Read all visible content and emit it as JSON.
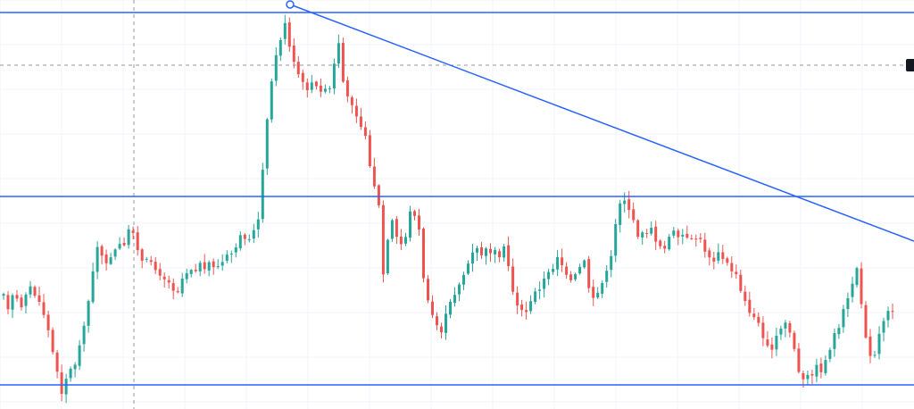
{
  "chart_data": {
    "type": "candlestick",
    "grid": true,
    "colors": {
      "up": "#26a69a",
      "down": "#ef5350",
      "drawing": "#2962ff",
      "grid": "#f0f3fa",
      "crosshair": "#9598a1",
      "badge": "#131722"
    },
    "y_range": [
      0,
      458
    ],
    "n_candles": 200,
    "path_points": [
      [
        0,
        340
      ],
      [
        8,
        320
      ],
      [
        14,
        350
      ],
      [
        20,
        330
      ],
      [
        28,
        345
      ],
      [
        36,
        320
      ],
      [
        44,
        330
      ],
      [
        50,
        345
      ],
      [
        56,
        355
      ],
      [
        62,
        385
      ],
      [
        68,
        415
      ],
      [
        73,
        440
      ],
      [
        78,
        425
      ],
      [
        84,
        415
      ],
      [
        90,
        405
      ],
      [
        95,
        385
      ],
      [
        100,
        355
      ],
      [
        106,
        330
      ],
      [
        110,
        300
      ],
      [
        114,
        275
      ],
      [
        120,
        285
      ],
      [
        128,
        295
      ],
      [
        134,
        280
      ],
      [
        140,
        275
      ],
      [
        146,
        268
      ],
      [
        152,
        255
      ],
      [
        156,
        262
      ],
      [
        160,
        280
      ],
      [
        166,
        300
      ],
      [
        172,
        290
      ],
      [
        180,
        300
      ],
      [
        188,
        310
      ],
      [
        196,
        320
      ],
      [
        204,
        325
      ],
      [
        212,
        305
      ],
      [
        220,
        300
      ],
      [
        230,
        298
      ],
      [
        240,
        295
      ],
      [
        250,
        300
      ],
      [
        258,
        290
      ],
      [
        264,
        285
      ],
      [
        272,
        270
      ],
      [
        280,
        262
      ],
      [
        288,
        264
      ],
      [
        294,
        250
      ],
      [
        296,
        215
      ],
      [
        300,
        180
      ],
      [
        305,
        130
      ],
      [
        310,
        80
      ],
      [
        316,
        60
      ],
      [
        320,
        40
      ],
      [
        324,
        22
      ],
      [
        328,
        50
      ],
      [
        334,
        70
      ],
      [
        340,
        85
      ],
      [
        346,
        100
      ],
      [
        352,
        95
      ],
      [
        358,
        100
      ],
      [
        364,
        98
      ],
      [
        370,
        105
      ],
      [
        376,
        100
      ],
      [
        380,
        70
      ],
      [
        384,
        50
      ],
      [
        388,
        80
      ],
      [
        394,
        110
      ],
      [
        400,
        115
      ],
      [
        406,
        130
      ],
      [
        412,
        145
      ],
      [
        418,
        175
      ],
      [
        422,
        195
      ],
      [
        426,
        215
      ],
      [
        430,
        235
      ],
      [
        434,
        300
      ],
      [
        436,
        335
      ],
      [
        440,
        260
      ],
      [
        446,
        245
      ],
      [
        450,
        270
      ],
      [
        456,
        275
      ],
      [
        462,
        255
      ],
      [
        466,
        230
      ],
      [
        470,
        240
      ],
      [
        474,
        255
      ],
      [
        478,
        300
      ],
      [
        484,
        340
      ],
      [
        490,
        355
      ],
      [
        496,
        368
      ],
      [
        500,
        370
      ],
      [
        508,
        345
      ],
      [
        514,
        330
      ],
      [
        520,
        315
      ],
      [
        526,
        305
      ],
      [
        532,
        290
      ],
      [
        538,
        280
      ],
      [
        546,
        285
      ],
      [
        554,
        280
      ],
      [
        562,
        285
      ],
      [
        570,
        280
      ],
      [
        574,
        295
      ],
      [
        578,
        320
      ],
      [
        584,
        340
      ],
      [
        590,
        350
      ],
      [
        598,
        345
      ],
      [
        606,
        325
      ],
      [
        614,
        315
      ],
      [
        622,
        305
      ],
      [
        630,
        285
      ],
      [
        636,
        300
      ],
      [
        642,
        320
      ],
      [
        648,
        315
      ],
      [
        654,
        300
      ],
      [
        660,
        295
      ],
      [
        666,
        330
      ],
      [
        672,
        335
      ],
      [
        678,
        320
      ],
      [
        684,
        310
      ],
      [
        688,
        295
      ],
      [
        692,
        270
      ],
      [
        696,
        240
      ],
      [
        700,
        225
      ],
      [
        704,
        222
      ],
      [
        708,
        228
      ],
      [
        714,
        250
      ],
      [
        720,
        262
      ],
      [
        726,
        265
      ],
      [
        732,
        255
      ],
      [
        738,
        265
      ],
      [
        744,
        275
      ],
      [
        750,
        275
      ],
      [
        756,
        265
      ],
      [
        762,
        260
      ],
      [
        768,
        262
      ],
      [
        774,
        270
      ],
      [
        780,
        272
      ],
      [
        786,
        265
      ],
      [
        792,
        275
      ],
      [
        798,
        285
      ],
      [
        804,
        290
      ],
      [
        810,
        280
      ],
      [
        816,
        295
      ],
      [
        822,
        300
      ],
      [
        828,
        305
      ],
      [
        834,
        325
      ],
      [
        840,
        340
      ],
      [
        846,
        350
      ],
      [
        852,
        360
      ],
      [
        860,
        375
      ],
      [
        868,
        390
      ],
      [
        874,
        380
      ],
      [
        880,
        370
      ],
      [
        886,
        360
      ],
      [
        892,
        380
      ],
      [
        896,
        395
      ],
      [
        900,
        420
      ],
      [
        906,
        430
      ],
      [
        912,
        420
      ],
      [
        918,
        412
      ],
      [
        924,
        415
      ],
      [
        930,
        405
      ],
      [
        936,
        385
      ],
      [
        940,
        375
      ],
      [
        946,
        360
      ],
      [
        952,
        345
      ],
      [
        958,
        330
      ],
      [
        964,
        290
      ],
      [
        968,
        330
      ],
      [
        972,
        360
      ],
      [
        976,
        380
      ],
      [
        980,
        395
      ],
      [
        986,
        395
      ],
      [
        990,
        375
      ],
      [
        994,
        360
      ],
      [
        1000,
        345
      ]
    ]
  }
}
